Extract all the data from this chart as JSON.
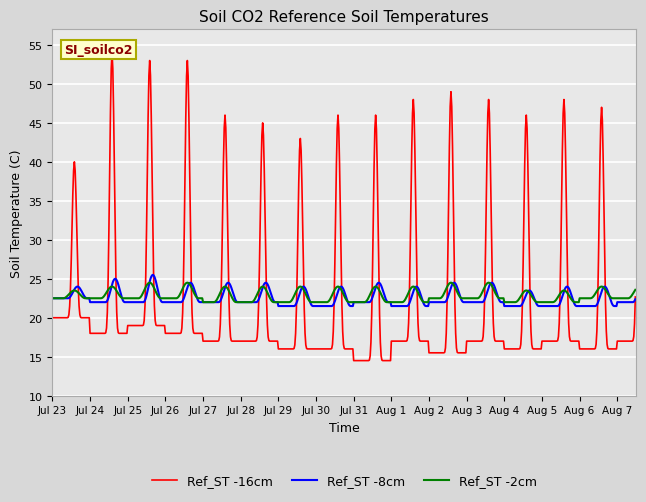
{
  "title": "Soil CO2 Reference Soil Temperatures",
  "xlabel": "Time",
  "ylabel": "Soil Temperature (C)",
  "ylim": [
    10,
    57
  ],
  "yticks": [
    10,
    15,
    20,
    25,
    30,
    35,
    40,
    45,
    50,
    55
  ],
  "legend_labels": [
    "Ref_ST -16cm",
    "Ref_ST -8cm",
    "Ref_ST -2cm"
  ],
  "legend_colors": [
    "red",
    "blue",
    "green"
  ],
  "annotation_text": "SI_soilco2",
  "annotation_color": "#8B0000",
  "annotation_bg": "#FFFFCC",
  "fig_color": "#D8D8D8",
  "plot_bg": "#E8E8E8",
  "grid_color": "#FFFFFF",
  "tick_labels": [
    "Jul 23",
    "Jul 24",
    "Jul 25",
    "Jul 26",
    "Jul 27",
    "Jul 28",
    "Jul 29",
    "Jul 30",
    "Jul 31",
    "Aug 1",
    "Aug 2",
    "Aug 3",
    "Aug 4",
    "Aug 5",
    "Aug 6",
    "Aug 7"
  ],
  "n_days": 15.5,
  "hours_per_sample": 0.5
}
